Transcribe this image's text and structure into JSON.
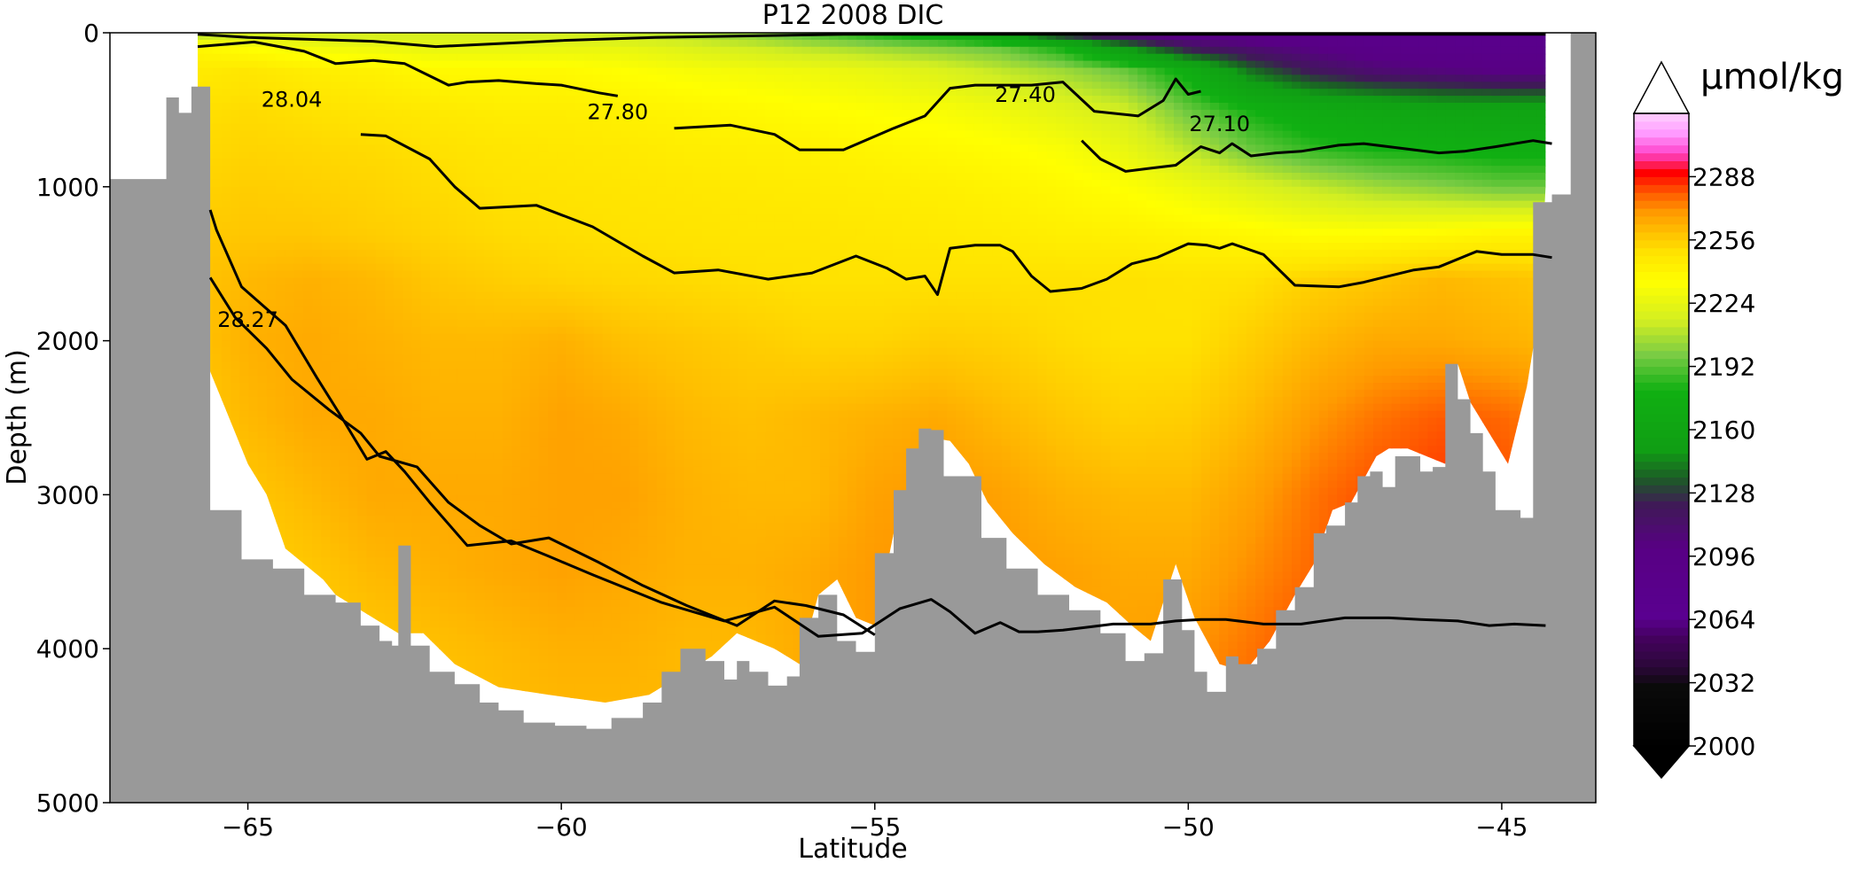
{
  "chart_data": {
    "type": "heatmap",
    "title": "P12 2008 DIC",
    "xlabel": "Latitude",
    "ylabel": "Depth (m)",
    "xlim": [
      -67.2,
      -43.5
    ],
    "ylim": [
      5000,
      0
    ],
    "x_ticks": [
      -65,
      -60,
      -55,
      -50,
      -45
    ],
    "x_tick_labels": [
      "−65",
      "−60",
      "−55",
      "−50",
      "−45"
    ],
    "y_ticks": [
      0,
      1000,
      2000,
      3000,
      4000,
      5000
    ],
    "y_tick_labels": [
      "0",
      "1000",
      "2000",
      "3000",
      "4000",
      "5000"
    ],
    "colorbar": {
      "label": "µmol/kg",
      "range": [
        2000,
        2320
      ],
      "extend": "both",
      "ticks": [
        2000,
        2032,
        2064,
        2096,
        2128,
        2160,
        2192,
        2224,
        2256,
        2288
      ],
      "tick_labels": [
        "2000",
        "2032",
        "2064",
        "2096",
        "2128",
        "2160",
        "2192",
        "2224",
        "2256",
        "2288"
      ],
      "colormap": [
        [
          2000,
          "#000000"
        ],
        [
          2030,
          "#0a0a0a"
        ],
        [
          2040,
          "#2a0838"
        ],
        [
          2055,
          "#45025f"
        ],
        [
          2065,
          "#5a0090"
        ],
        [
          2100,
          "#580084"
        ],
        [
          2122,
          "#3f1a57"
        ],
        [
          2135,
          "#1d5a27"
        ],
        [
          2150,
          "#109e14"
        ],
        [
          2180,
          "#10b012"
        ],
        [
          2198,
          "#7acc44"
        ],
        [
          2215,
          "#d2ee22"
        ],
        [
          2235,
          "#ffff00"
        ],
        [
          2250,
          "#ffe200"
        ],
        [
          2260,
          "#ffc000"
        ],
        [
          2270,
          "#ff9a00"
        ],
        [
          2280,
          "#ff5a00"
        ],
        [
          2290,
          "#ff0000"
        ],
        [
          2300,
          "#ff44cc"
        ],
        [
          2310,
          "#ff9aff"
        ],
        [
          2320,
          "#ffd0ff"
        ]
      ]
    },
    "contour_labels": [
      {
        "text": "28.04",
        "x": -64.3,
        "y": 480
      },
      {
        "text": "27.80",
        "x": -59.1,
        "y": 560
      },
      {
        "text": "27.40",
        "x": -52.6,
        "y": 450
      },
      {
        "text": "27.10",
        "x": -49.5,
        "y": 640
      },
      {
        "text": "28.27",
        "x": -65.0,
        "y": 1910
      }
    ],
    "isopycnals": [
      {
        "x": [
          -65.8,
          -65,
          -64.2,
          -63,
          -62,
          -61,
          -60,
          -58.5,
          -57,
          -55.5,
          -54,
          -53,
          -51.8,
          -51,
          -50,
          -49,
          -48,
          -47,
          -46,
          -45,
          -44.3
        ],
        "y": [
          10,
          30,
          40,
          55,
          90,
          70,
          50,
          30,
          20,
          10,
          10,
          10,
          10,
          10,
          10,
          10,
          10,
          10,
          10,
          10,
          10
        ]
      },
      {
        "x": [
          -65.8,
          -64.9,
          -64.1,
          -63.6,
          -63,
          -62.5,
          -62,
          -61.8,
          -61.5,
          -61,
          -60.4,
          -60,
          -59.4,
          -59.1
        ],
        "y": [
          90,
          60,
          120,
          200,
          180,
          200,
          300,
          340,
          320,
          310,
          330,
          340,
          390,
          410
        ]
      },
      {
        "x": [
          -58.2,
          -57.3,
          -56.6,
          -56.2,
          -55.5,
          -54.7,
          -54.2,
          -53.8,
          -53.4,
          -52.9,
          -52.5,
          -52,
          -51.5,
          -50.8,
          -50.4,
          -50.2,
          -50,
          -49.8
        ],
        "y": [
          620,
          600,
          660,
          760,
          760,
          620,
          540,
          360,
          340,
          340,
          340,
          320,
          510,
          540,
          440,
          300,
          400,
          380
        ]
      },
      {
        "x": [
          -51.7,
          -51.4,
          -51,
          -50.6,
          -50.2,
          -49.8,
          -49.5,
          -49.3,
          -49,
          -48.6,
          -48.2,
          -47.6,
          -47.2,
          -46.8,
          -46.4,
          -46,
          -45.6,
          -45.1,
          -44.5,
          -44.2
        ],
        "y": [
          700,
          820,
          900,
          880,
          860,
          740,
          780,
          720,
          800,
          780,
          770,
          730,
          720,
          740,
          760,
          780,
          770,
          740,
          700,
          720
        ]
      },
      {
        "x": [
          -63.2,
          -62.8,
          -62.1,
          -61.7,
          -61.3,
          -60.4,
          -59.5,
          -58.7,
          -58.2,
          -57.5,
          -56.7,
          -56,
          -55.3,
          -54.8,
          -54.5,
          -54.2,
          -54,
          -53.8,
          -53.4,
          -53,
          -52.8,
          -52.5,
          -52.2,
          -51.7,
          -51.3,
          -50.9,
          -50.5,
          -50,
          -49.7,
          -49.5,
          -49.3,
          -48.8,
          -48.3,
          -47.6,
          -47.2,
          -46.8,
          -46.4,
          -46,
          -45.4,
          -45,
          -44.5,
          -44.2
        ],
        "y": [
          660,
          670,
          820,
          1000,
          1140,
          1120,
          1260,
          1450,
          1560,
          1540,
          1600,
          1560,
          1450,
          1530,
          1600,
          1580,
          1700,
          1400,
          1380,
          1380,
          1420,
          1580,
          1680,
          1660,
          1600,
          1500,
          1460,
          1370,
          1380,
          1400,
          1370,
          1440,
          1640,
          1650,
          1620,
          1580,
          1540,
          1520,
          1420,
          1440,
          1440,
          1460
        ]
      },
      {
        "x": [
          -65.6,
          -65.5,
          -65.1,
          -64.4,
          -63.9,
          -63.5,
          -63.1,
          -62.8,
          -62.5,
          -62.1,
          -61.5,
          -60.8,
          -60.2,
          -59.5,
          -58.4,
          -57.4,
          -56.6,
          -55.9,
          -55.2,
          -54.6,
          -54.1,
          -53.8,
          -53.4,
          -53,
          -52.7,
          -52.4,
          -52,
          -51.6,
          -51.2,
          -50.6,
          -50.2,
          -49.8,
          -49.4,
          -48.8,
          -48.2,
          -47.5,
          -46.8,
          -46.3,
          -45.7,
          -45.2,
          -44.8,
          -44.3
        ],
        "y": [
          1150,
          1280,
          1650,
          1900,
          2240,
          2500,
          2770,
          2720,
          2850,
          3050,
          3330,
          3300,
          3400,
          3520,
          3700,
          3820,
          3730,
          3920,
          3900,
          3740,
          3680,
          3760,
          3900,
          3830,
          3890,
          3890,
          3880,
          3860,
          3840,
          3840,
          3820,
          3810,
          3810,
          3840,
          3840,
          3800,
          3800,
          3810,
          3820,
          3850,
          3840,
          3850
        ]
      },
      {
        "x": [
          -65.6,
          -65.2,
          -64.7,
          -64.3,
          -63.7,
          -63.2,
          -62.9,
          -62.3,
          -61.8,
          -61.3,
          -60.8,
          -60.2,
          -59.4,
          -58.7,
          -58,
          -57.2,
          -56.6,
          -56.1,
          -55.5,
          -55
        ],
        "y": [
          1590,
          1850,
          2050,
          2250,
          2450,
          2600,
          2750,
          2820,
          3050,
          3200,
          3320,
          3280,
          3440,
          3590,
          3720,
          3850,
          3690,
          3720,
          3780,
          3910
        ]
      }
    ],
    "dic_field": {
      "x": [
        -66,
        -65,
        -64,
        -63,
        -62,
        -61,
        -60,
        -59,
        -58,
        -57,
        -56,
        -55,
        -54,
        -53,
        -52,
        -51,
        -50,
        -49,
        -48,
        -47,
        -46,
        -45,
        -44.3
      ],
      "depth": [
        0,
        100,
        250,
        500,
        750,
        1000,
        1300,
        1600,
        2000,
        2500,
        3000,
        3500,
        4000,
        4500,
        5000
      ],
      "values": [
        [
          2205,
          2210,
          2215,
          2215,
          2215,
          2215,
          2215,
          2210,
          2205,
          2200,
          2190,
          2180,
          2170,
          2150,
          2120,
          2100,
          2090,
          2085,
          2080,
          2075,
          2075,
          2075,
          2075
        ],
        [
          2240,
          2235,
          2230,
          2228,
          2225,
          2225,
          2225,
          2225,
          2220,
          2215,
          2210,
          2205,
          2200,
          2195,
          2180,
          2150,
          2120,
          2110,
          2100,
          2090,
          2085,
          2080,
          2080
        ],
        [
          2245,
          2248,
          2244,
          2242,
          2238,
          2238,
          2238,
          2235,
          2232,
          2230,
          2228,
          2225,
          2220,
          2212,
          2205,
          2195,
          2175,
          2140,
          2120,
          2110,
          2105,
          2100,
          2100
        ],
        [
          2250,
          2252,
          2250,
          2248,
          2246,
          2244,
          2244,
          2242,
          2240,
          2238,
          2236,
          2234,
          2232,
          2228,
          2222,
          2215,
          2195,
          2180,
          2170,
          2165,
          2160,
          2160,
          2160
        ],
        [
          2252,
          2254,
          2253,
          2252,
          2250,
          2248,
          2247,
          2246,
          2244,
          2243,
          2242,
          2240,
          2238,
          2236,
          2232,
          2225,
          2210,
          2195,
          2185,
          2180,
          2178,
          2175,
          2175
        ],
        [
          2254,
          2256,
          2255,
          2254,
          2252,
          2250,
          2249,
          2248,
          2247,
          2246,
          2245,
          2244,
          2243,
          2241,
          2238,
          2234,
          2228,
          2220,
          2212,
          2205,
          2200,
          2195,
          2195
        ],
        [
          2257,
          2258,
          2258,
          2256,
          2254,
          2252,
          2251,
          2250,
          2249,
          2248,
          2248,
          2247,
          2246,
          2245,
          2243,
          2242,
          2240,
          2238,
          2235,
          2235,
          2237,
          2240,
          2240
        ],
        [
          2258,
          2262,
          2264,
          2262,
          2258,
          2256,
          2254,
          2253,
          2252,
          2251,
          2250,
          2250,
          2250,
          2250,
          2250,
          2250,
          2249,
          2250,
          2255,
          2258,
          2262,
          2260,
          2258
        ],
        [
          2258,
          2264,
          2266,
          2264,
          2262,
          2262,
          2264,
          2260,
          2258,
          2256,
          2254,
          2254,
          2256,
          2255,
          2252,
          2250,
          2250,
          2256,
          2262,
          2266,
          2266,
          2264,
          2262
        ],
        [
          2256,
          2262,
          2266,
          2266,
          2264,
          2264,
          2268,
          2266,
          2262,
          2260,
          2262,
          2264,
          2266,
          2262,
          2258,
          2255,
          2256,
          2262,
          2270,
          2276,
          2280,
          2278,
          2274
        ],
        [
          2252,
          2258,
          2262,
          2266,
          2266,
          2266,
          2268,
          2268,
          2264,
          2262,
          2262,
          2268,
          2270,
          2268,
          2264,
          2262,
          2262,
          2268,
          2276,
          2282,
          2284,
          2282,
          2278
        ],
        [
          2250,
          2254,
          2258,
          2262,
          2264,
          2266,
          2268,
          2266,
          2264,
          2264,
          2266,
          2270,
          2272,
          2270,
          2268,
          2266,
          2266,
          2272,
          2278,
          2284,
          2286,
          2284,
          2280
        ],
        [
          2248,
          2252,
          2256,
          2258,
          2260,
          2262,
          2264,
          2264,
          2262,
          2262,
          2266,
          2270,
          2272,
          2270,
          2268,
          2268,
          2270,
          2276,
          2282,
          2286,
          2286,
          2284,
          2280
        ],
        [
          2246,
          2250,
          2254,
          2256,
          2258,
          2260,
          2262,
          2262,
          2262,
          2262,
          2266,
          2270,
          2272,
          2270,
          2268,
          2270,
          2272,
          2278,
          2284,
          2288,
          2286,
          2284,
          2280
        ],
        [
          2246,
          2250,
          2254,
          2256,
          2258,
          2260,
          2262,
          2262,
          2262,
          2262,
          2266,
          2270,
          2272,
          2270,
          2268,
          2270,
          2272,
          2278,
          2284,
          2288,
          2286,
          2284,
          2280
        ]
      ]
    },
    "bottom_depth": {
      "x": [
        -67.2,
        -66.6,
        -66.3,
        -66.1,
        -65.9,
        -65.6,
        -65.1,
        -64.6,
        -64.1,
        -63.6,
        -63.2,
        -62.9,
        -62.7,
        -62.6,
        -62.4,
        -62.1,
        -61.7,
        -61.3,
        -61.0,
        -60.6,
        -60.1,
        -59.6,
        -59.2,
        -58.7,
        -58.4,
        -58.1,
        -57.7,
        -57.4,
        -57.2,
        -57.0,
        -56.7,
        -56.4,
        -56.2,
        -55.9,
        -55.6,
        -55.3,
        -55.0,
        -54.7,
        -54.5,
        -54.3,
        -54.1,
        -53.9,
        -53.7,
        -53.3,
        -52.9,
        -52.4,
        -51.9,
        -51.4,
        -51.0,
        -50.7,
        -50.4,
        -50.1,
        -49.9,
        -49.7,
        -49.4,
        -49.2,
        -48.9,
        -48.6,
        -48.3,
        -48.0,
        -47.8,
        -47.5,
        -47.3,
        -47.1,
        -46.9,
        -46.7,
        -46.5,
        -46.3,
        -46.1,
        -45.9,
        -45.7,
        -45.5,
        -45.3,
        -45.1,
        -44.9,
        -44.7,
        -44.5,
        -44.2,
        -43.9,
        -43.5
      ],
      "depth": [
        950,
        950,
        420,
        520,
        350,
        3100,
        3420,
        3480,
        3650,
        3700,
        3850,
        3950,
        3980,
        3330,
        3980,
        4150,
        4230,
        4350,
        4400,
        4480,
        4500,
        4520,
        4450,
        4350,
        4150,
        4000,
        4080,
        4200,
        4080,
        4150,
        4240,
        4180,
        3800,
        3650,
        3950,
        4020,
        3380,
        2970,
        2700,
        2570,
        2580,
        2880,
        2880,
        3280,
        3480,
        3650,
        3750,
        3900,
        4080,
        4030,
        3550,
        3880,
        4150,
        4280,
        4050,
        4100,
        4000,
        3750,
        3600,
        3250,
        3200,
        3050,
        2880,
        2850,
        2950,
        2750,
        2750,
        2850,
        2820,
        2150,
        2380,
        2600,
        2850,
        3100,
        3100,
        3150,
        1100,
        1050,
        0,
        0
      ]
    },
    "data_extent": {
      "x": [
        -65.8,
        -65.6,
        -65.3,
        -65.0,
        -64.7,
        -64.4,
        -64.1,
        -63.8,
        -63.6,
        -63.2,
        -62.6,
        -62.2,
        -61.7,
        -61.0,
        -60.2,
        -59.3,
        -58.6,
        -58.2,
        -57.6,
        -57.2,
        -56.6,
        -56.2,
        -55.9,
        -55.6,
        -55.3,
        -55.0,
        -54.7,
        -54.4,
        -54.1,
        -53.8,
        -53.5,
        -53.2,
        -52.8,
        -52.3,
        -51.8,
        -51.3,
        -50.9,
        -50.6,
        -50.2,
        -49.9,
        -49.5,
        -49.1,
        -48.7,
        -48.3,
        -48.0,
        -47.7,
        -47.4,
        -47.2,
        -47.0,
        -46.8,
        -46.5,
        -46.2,
        -45.9,
        -45.7,
        -45.5,
        -45.2,
        -44.9,
        -44.6,
        -44.4,
        -44.3
      ],
      "depth": [
        1100,
        2200,
        2500,
        2800,
        3000,
        3350,
        3450,
        3550,
        3650,
        3750,
        3900,
        3900,
        4100,
        4250,
        4300,
        4350,
        4300,
        4200,
        4050,
        3900,
        4000,
        4100,
        3650,
        3550,
        3800,
        3850,
        3250,
        2850,
        2630,
        2650,
        2800,
        3050,
        3250,
        3450,
        3600,
        3700,
        3850,
        3950,
        3450,
        3800,
        4100,
        4150,
        3950,
        3650,
        3450,
        3100,
        3050,
        2900,
        2750,
        2700,
        2700,
        2750,
        2800,
        2150,
        2400,
        2600,
        2800,
        2300,
        1800,
        1000
      ]
    }
  }
}
